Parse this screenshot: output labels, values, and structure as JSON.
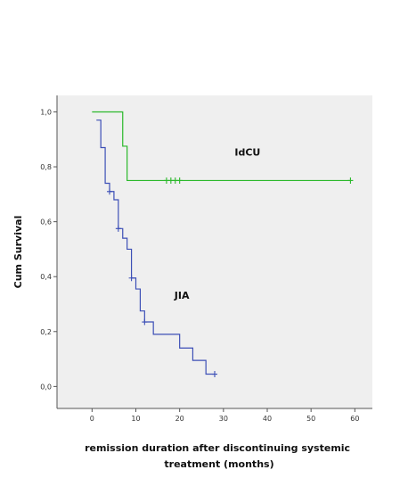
{
  "chart_data": {
    "type": "line",
    "subtype": "kaplan-meier step survival",
    "xlabel": "remission duration after discontinuing systemic treatment (months)",
    "ylabel": "Cum Survival",
    "xlim": [
      -8,
      64
    ],
    "ylim": [
      -0.08,
      1.06
    ],
    "x_ticks": [
      0,
      10,
      20,
      30,
      40,
      50,
      60
    ],
    "y_ticks": [
      0.0,
      0.2,
      0.4,
      0.6,
      0.8,
      1.0
    ],
    "y_tick_labels": [
      "0,0",
      "0,2",
      "0,4",
      "0,6",
      "0,8",
      "1,0"
    ],
    "grid": false,
    "legend": "none",
    "background": "#efefef",
    "annotations": [
      {
        "text": "IdCU",
        "x": 35.5,
        "y": 0.84
      },
      {
        "text": "JIA",
        "x": 20.5,
        "y": 0.32
      }
    ],
    "series": [
      {
        "color": "#2ab82a",
        "steps": [
          [
            0,
            1.0
          ],
          [
            7,
            0.875
          ],
          [
            8,
            0.75
          ],
          [
            59,
            0.75
          ]
        ],
        "censored": [
          [
            17,
            0.75
          ],
          [
            18,
            0.75
          ],
          [
            19,
            0.75
          ],
          [
            20,
            0.75
          ],
          [
            59,
            0.75
          ]
        ]
      },
      {
        "color": "#3c4fb6",
        "steps": [
          [
            1,
            0.97
          ],
          [
            2,
            0.87
          ],
          [
            3,
            0.74
          ],
          [
            4,
            0.71
          ],
          [
            5,
            0.68
          ],
          [
            6,
            0.575
          ],
          [
            7,
            0.54
          ],
          [
            8,
            0.5
          ],
          [
            9,
            0.395
          ],
          [
            10,
            0.355
          ],
          [
            11,
            0.275
          ],
          [
            12,
            0.235
          ],
          [
            14,
            0.19
          ],
          [
            20,
            0.14
          ],
          [
            23,
            0.095
          ],
          [
            26,
            0.045
          ],
          [
            28,
            0.045
          ]
        ],
        "censored": [
          [
            4,
            0.71
          ],
          [
            6,
            0.575
          ],
          [
            9,
            0.395
          ],
          [
            12,
            0.235
          ],
          [
            28,
            0.045
          ]
        ]
      }
    ]
  }
}
